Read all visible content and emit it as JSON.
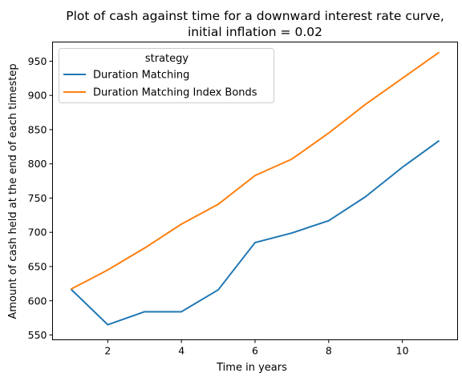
{
  "chart_data": {
    "type": "line",
    "title_line1": "Plot of cash against time for a downward interest rate curve,",
    "title_line2": "initial inflation = 0.02",
    "xlabel": "Time in years",
    "ylabel": "Amount of cash held at the end of each timestep",
    "xlim": [
      0.5,
      11.5
    ],
    "ylim": [
      543,
      978
    ],
    "xticks": [
      2,
      4,
      6,
      8,
      10
    ],
    "yticks": [
      550,
      600,
      650,
      700,
      750,
      800,
      850,
      900,
      950
    ],
    "legend_title": "strategy",
    "legend_position": "upper-left",
    "series": [
      {
        "name": "Duration Matching",
        "color": "#1f77b4",
        "x": [
          1,
          2,
          3,
          4,
          5,
          6,
          7,
          8,
          9,
          10,
          11
        ],
        "y": [
          617,
          565,
          584,
          584,
          616,
          685,
          699,
          717,
          752,
          795,
          834
        ]
      },
      {
        "name": "Duration Matching Index Bonds",
        "color": "#ff7f0e",
        "x": [
          1,
          2,
          3,
          4,
          5,
          6,
          7,
          8,
          9,
          10,
          11
        ],
        "y": [
          617,
          645,
          677,
          712,
          741,
          783,
          807,
          845,
          887,
          925,
          963
        ]
      }
    ]
  }
}
